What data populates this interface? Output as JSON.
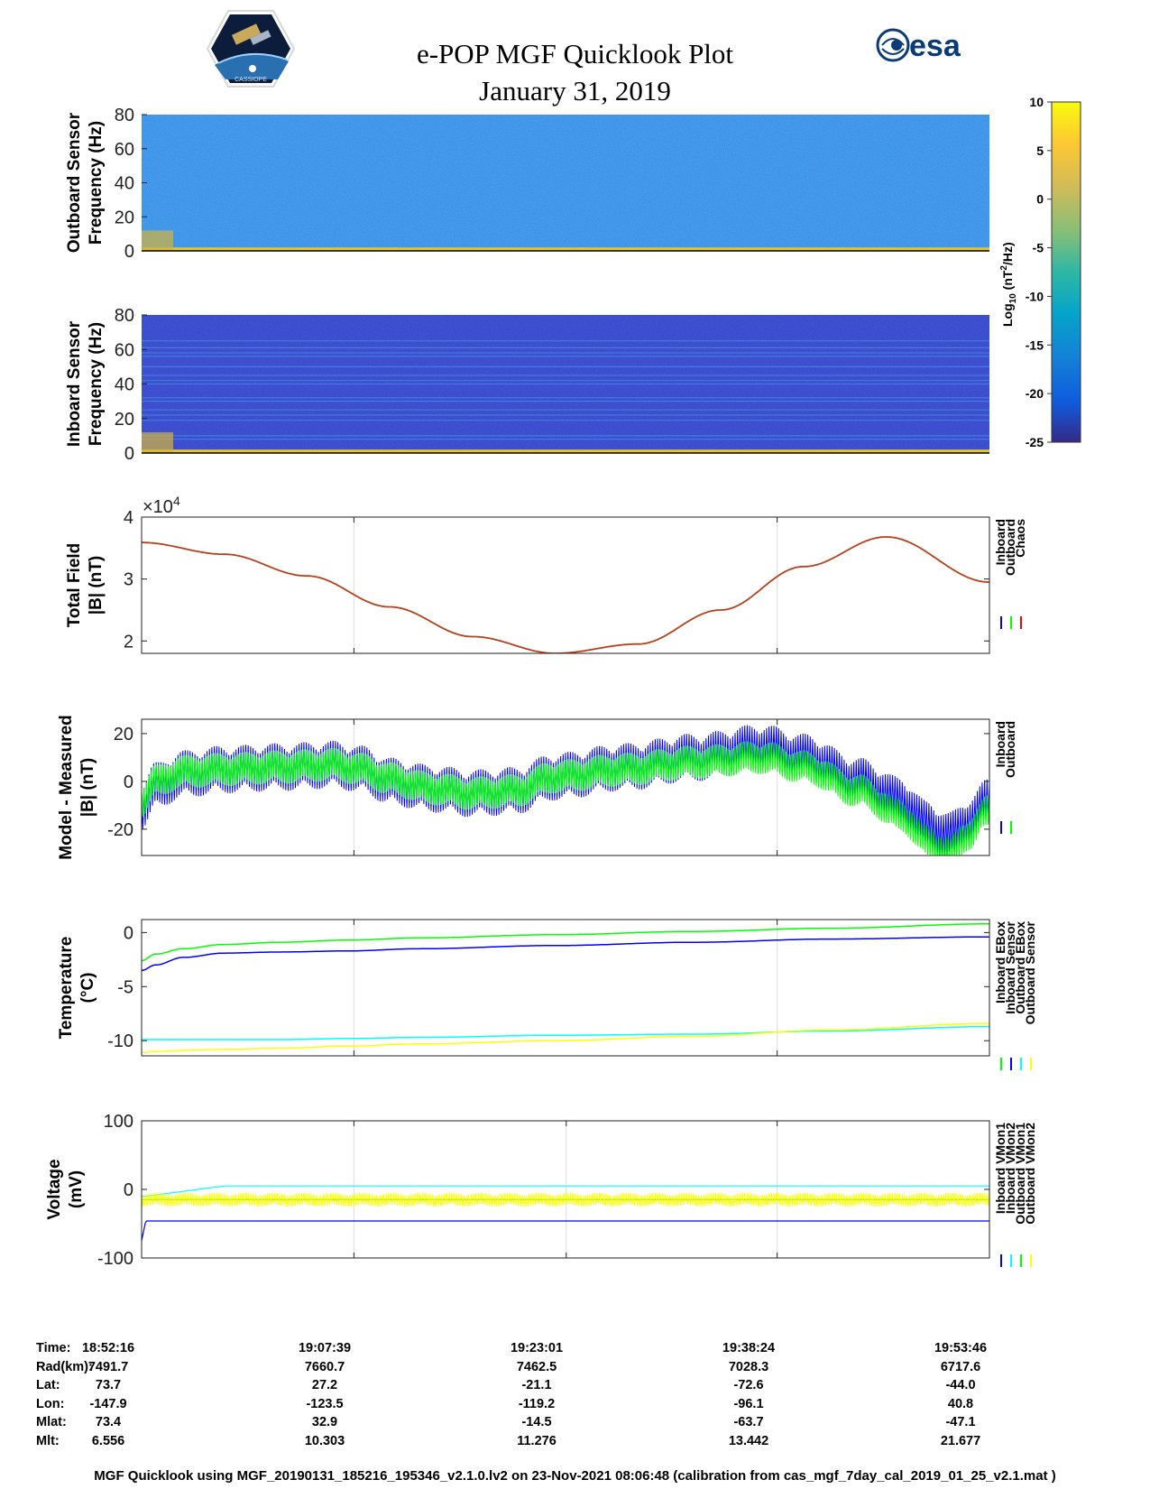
{
  "header": {
    "title_line1": "e-POP MGF Quicklook Plot",
    "title_line2": "January 31, 2019",
    "logo_left_text": "CASSIOPE",
    "logo_right_text": "esa"
  },
  "chart_data": [
    {
      "type": "heatmap",
      "title": "",
      "ylabel": "Outboard Sensor Frequency (Hz)",
      "ylabel_lines": [
        "Outboard Sensor",
        "Frequency (Hz)"
      ],
      "ylim": [
        0,
        80
      ],
      "yticks": [
        0,
        20,
        40,
        60,
        80
      ],
      "background_level": -13,
      "line_frequencies_hz": [],
      "low_freq_level": 8
    },
    {
      "type": "heatmap",
      "title": "",
      "ylabel": "Inboard Sensor Frequency (Hz)",
      "ylabel_lines": [
        "Inboard Sensor",
        "Frequency (Hz)"
      ],
      "ylim": [
        0,
        80
      ],
      "yticks": [
        0,
        20,
        40,
        60,
        80
      ],
      "background_level": -21,
      "line_frequencies_hz": [
        8,
        10,
        19,
        22,
        25,
        30,
        32,
        40,
        42,
        45,
        50,
        56,
        58,
        61,
        65
      ],
      "low_freq_level": 8
    },
    {
      "colorbar": {
        "label": "Log10 (nT^2/Hz)",
        "label_parts": [
          "Log",
          "10",
          " (nT",
          "2",
          "/Hz)"
        ],
        "range": [
          -25,
          10
        ],
        "ticks": [
          10,
          5,
          0,
          -5,
          -10,
          -15,
          -20,
          -25
        ]
      }
    },
    {
      "type": "line",
      "ylabel": "Total Field |B| (nT)",
      "ylabel_lines": [
        "Total Field",
        "|B| (nT)"
      ],
      "ylim": [
        1.8,
        4.0
      ],
      "yticks": [
        2,
        3,
        4
      ],
      "exponent_label": "×10^4",
      "exponent_parts": [
        "×10",
        "4"
      ],
      "x_minutes": [
        0,
        6,
        12,
        18,
        24,
        30,
        36,
        42,
        48,
        54,
        61.5
      ],
      "series": [
        {
          "name": "Inboard",
          "color": "#0000ff",
          "values": [
            3.59,
            3.4,
            3.05,
            2.55,
            2.07,
            1.8,
            1.95,
            2.5,
            3.2,
            3.68,
            2.95
          ]
        },
        {
          "name": "Outboard",
          "color": "#00ff00",
          "values": [
            3.59,
            3.4,
            3.05,
            2.55,
            2.07,
            1.8,
            1.95,
            2.5,
            3.2,
            3.68,
            2.95
          ]
        },
        {
          "name": "Chaos",
          "color": "#ff0000",
          "values": [
            3.59,
            3.4,
            3.05,
            2.55,
            2.07,
            1.8,
            1.95,
            2.5,
            3.2,
            3.68,
            2.95
          ]
        }
      ]
    },
    {
      "type": "line",
      "ylabel": "Model - Measured |B| (nT)",
      "ylabel_lines": [
        "Model - Measured",
        "|B| (nT)"
      ],
      "ylim": [
        -31,
        26
      ],
      "yticks": [
        -20,
        0,
        20
      ],
      "x_minutes": [
        0,
        1,
        3,
        6,
        10,
        14,
        16,
        18,
        21,
        24,
        27,
        30,
        35,
        40,
        45,
        48,
        52,
        55,
        57,
        58.5,
        60,
        61.5
      ],
      "series": [
        {
          "name": "Inboard",
          "color": "#0000ff",
          "values": [
            -10,
            -2,
            3,
            5,
            6,
            7,
            5,
            0,
            -3,
            -5,
            -4,
            2,
            6,
            10,
            14,
            10,
            0,
            -8,
            -18,
            -23,
            -17,
            -8
          ]
        },
        {
          "name": "Outboard",
          "color": "#00ff00",
          "values": [
            -8,
            0,
            4,
            5,
            6,
            7,
            5,
            1,
            -3,
            -5,
            -4,
            2,
            5,
            8,
            10,
            6,
            -4,
            -14,
            -25,
            -30,
            -22,
            -12
          ]
        }
      ]
    },
    {
      "type": "line",
      "ylabel": "Temperature (°C)",
      "ylabel_lines": [
        "Temperature",
        "(°C)"
      ],
      "ylim": [
        -11.4,
        1.2
      ],
      "yticks": [
        -10,
        -5,
        0
      ],
      "x_minutes": [
        0,
        1,
        3,
        6,
        10,
        15,
        20,
        30,
        40,
        50,
        61.5
      ],
      "series": [
        {
          "name": "Inboard EBox",
          "color": "#00ff00",
          "values": [
            -2.6,
            -2.0,
            -1.5,
            -1.1,
            -0.9,
            -0.7,
            -0.5,
            -0.2,
            0.1,
            0.4,
            0.8
          ]
        },
        {
          "name": "Inboard Sensor",
          "color": "#0000ff",
          "values": [
            -3.5,
            -3.0,
            -2.3,
            -1.9,
            -1.8,
            -1.7,
            -1.5,
            -1.2,
            -0.9,
            -0.6,
            -0.4
          ]
        },
        {
          "name": "Outboard EBox",
          "color": "#00ffff",
          "values": [
            -9.9,
            -9.9,
            -9.9,
            -9.9,
            -9.9,
            -9.8,
            -9.7,
            -9.5,
            -9.4,
            -9.1,
            -8.7
          ]
        },
        {
          "name": "Outboard Sensor",
          "color": "#ffff00",
          "values": [
            -11.1,
            -11.0,
            -10.9,
            -10.8,
            -10.7,
            -10.5,
            -10.3,
            -10.0,
            -9.6,
            -9.0,
            -8.4
          ]
        }
      ]
    },
    {
      "type": "line",
      "ylabel": "Voltage (mV)",
      "ylabel_lines": [
        "Voltage",
        "(mV)"
      ],
      "ylim": [
        -100,
        100
      ],
      "yticks": [
        -100,
        0,
        100
      ],
      "x_minutes": [
        0,
        0.3,
        6,
        15,
        30,
        45,
        61.5
      ],
      "series": [
        {
          "name": "Inboard VMon1",
          "color": "#0000ff",
          "values": [
            -75,
            -46,
            -46,
            -46,
            -46,
            -46,
            -46
          ]
        },
        {
          "name": "Inboard VMon2",
          "color": "#00ffff",
          "values": [
            -10,
            -10,
            5,
            5,
            5,
            5,
            5
          ]
        },
        {
          "name": "Outboard VMon1",
          "color": "#00ff00",
          "values": [
            -15,
            -15,
            -15,
            -15,
            -15,
            -15,
            -15
          ]
        },
        {
          "name": "Outboard VMon2",
          "color": "#ffff00",
          "values": [
            -15,
            -15,
            -15,
            -15,
            -15,
            -15,
            -15
          ]
        }
      ]
    }
  ],
  "ephemeris": {
    "labels": [
      "Time:",
      "Rad(km):",
      "Lat:",
      "Lon:",
      "Mlat:",
      "Mlt:"
    ],
    "columns": [
      {
        "time": "18:52:16",
        "rad": "7491.7",
        "lat": "73.7",
        "lon": "-147.9",
        "mlat": "73.4",
        "mlt": "6.556"
      },
      {
        "time": "19:07:39",
        "rad": "7660.7",
        "lat": "27.2",
        "lon": "-123.5",
        "mlat": "32.9",
        "mlt": "10.303"
      },
      {
        "time": "19:23:01",
        "rad": "7462.5",
        "lat": "-21.1",
        "lon": "-119.2",
        "mlat": "-14.5",
        "mlt": "11.276"
      },
      {
        "time": "19:38:24",
        "rad": "7028.3",
        "lat": "-72.6",
        "lon": "-96.1",
        "mlat": "-63.7",
        "mlt": "13.442"
      },
      {
        "time": "19:53:46",
        "rad": "6717.6",
        "lat": "-44.0",
        "lon": "40.8",
        "mlat": "-47.1",
        "mlt": "21.677"
      }
    ]
  },
  "footer_text": "MGF Quicklook using MGF_20190131_185216_195346_v2.1.0.lv2 on 23-Nov-2021 08:06:48 (calibration from cas_mgf_7day_cal_2019_01_25_v2.1.mat )"
}
